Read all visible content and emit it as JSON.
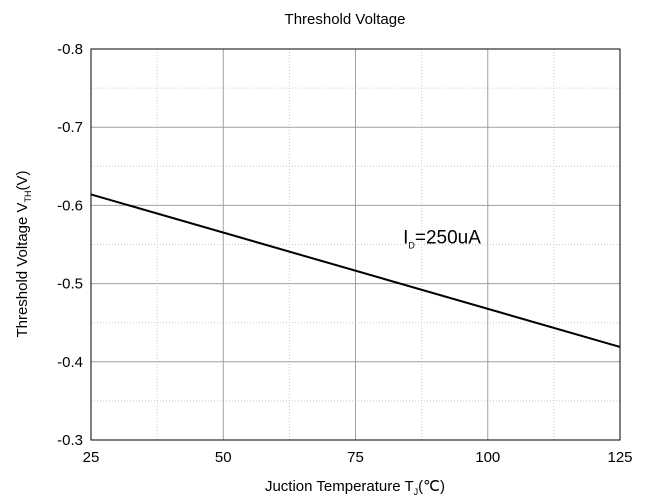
{
  "chart_data": {
    "type": "line",
    "title": "Threshold Voltage",
    "xlabel": {
      "main": "Juction Temperature T",
      "sub": "J",
      "unit": "(℃)"
    },
    "ylabel": {
      "main": "Threshold Voltage V",
      "sub": "TH",
      "unit": "(V)"
    },
    "xlim": [
      25,
      125
    ],
    "ylim": [
      -0.3,
      -0.8
    ],
    "y_inverted": true,
    "x_ticks": [
      25,
      50,
      75,
      100,
      125
    ],
    "x_tick_labels": [
      "25",
      "50",
      "75",
      "100",
      "125"
    ],
    "y_ticks": [
      -0.3,
      -0.4,
      -0.5,
      -0.6,
      -0.7,
      -0.8
    ],
    "y_tick_labels": [
      "-0.3",
      "-0.4",
      "-0.5",
      "-0.6",
      "-0.7",
      "-0.8"
    ],
    "grid": true,
    "minor_grid": true,
    "series": [
      {
        "x": [
          25,
          125
        ],
        "y": [
          -0.614,
          -0.419
        ],
        "color": "#000000"
      }
    ],
    "annotations": [
      {
        "main": "I",
        "sub": "D",
        "rest": "=250uA",
        "x": 84,
        "y": -0.56
      }
    ]
  }
}
